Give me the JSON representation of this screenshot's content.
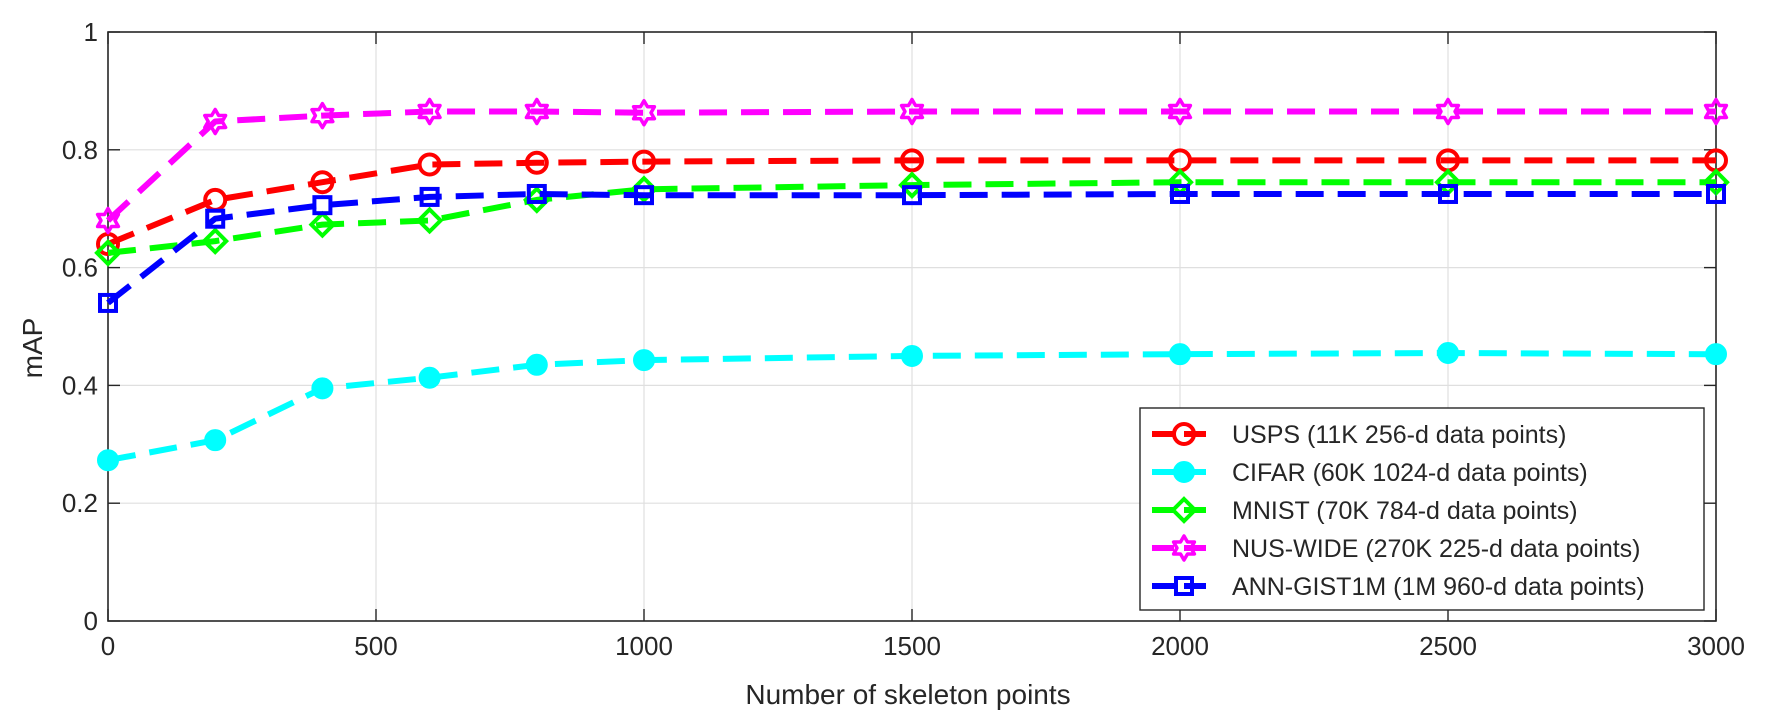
{
  "chart_data": {
    "type": "line",
    "xlabel": "Number of skeleton points",
    "ylabel": "mAP",
    "xlim": [
      0,
      3000
    ],
    "ylim": [
      0,
      1
    ],
    "xticks": [
      "0",
      "500",
      "1000",
      "1500",
      "2000",
      "2500",
      "3000"
    ],
    "yticks": [
      "0",
      "0.2",
      "0.4",
      "0.6",
      "0.8",
      "1"
    ],
    "grid": true,
    "legend_position": "bottom-right",
    "x": [
      0,
      200,
      400,
      600,
      800,
      1000,
      1500,
      2000,
      2500,
      3000
    ],
    "series": [
      {
        "name": "USPS (11K 256-d data points)",
        "color": "#ff0000",
        "marker": "circle",
        "values": [
          0.64,
          0.715,
          0.745,
          0.775,
          0.778,
          0.78,
          0.782,
          0.782,
          0.782,
          0.782
        ]
      },
      {
        "name": "CIFAR (60K 1024-d data points)",
        "color": "#00ffff",
        "marker": "filled-circle",
        "values": [
          0.273,
          0.307,
          0.395,
          0.413,
          0.435,
          0.443,
          0.45,
          0.453,
          0.455,
          0.453
        ]
      },
      {
        "name": "MNIST (70K 784-d data points)",
        "color": "#00ff00",
        "marker": "diamond",
        "values": [
          0.625,
          0.645,
          0.673,
          0.68,
          0.715,
          0.733,
          0.74,
          0.745,
          0.745,
          0.745
        ]
      },
      {
        "name": "NUS-WIDE (270K 225-d data points)",
        "color": "#ff00ff",
        "marker": "hexagram",
        "values": [
          0.68,
          0.848,
          0.858,
          0.865,
          0.865,
          0.863,
          0.865,
          0.865,
          0.865,
          0.865
        ]
      },
      {
        "name": "ANN-GIST1M (1M 960-d data points)",
        "color": "#0000ff",
        "marker": "square",
        "values": [
          0.54,
          0.683,
          0.706,
          0.72,
          0.725,
          0.723,
          0.723,
          0.725,
          0.725,
          0.725
        ]
      }
    ]
  }
}
